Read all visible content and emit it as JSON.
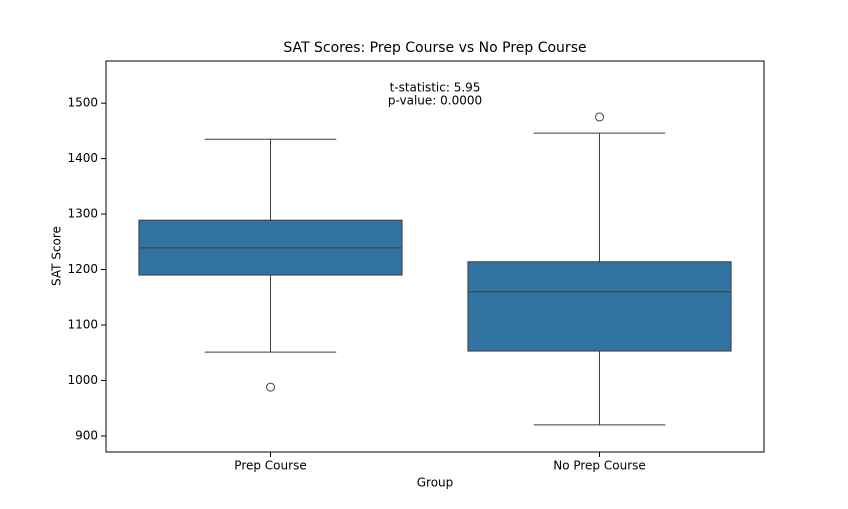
{
  "chart_data": {
    "type": "box",
    "title": "SAT Scores: Prep Course vs No Prep Course",
    "x_label": "Group",
    "y_label": "SAT Score",
    "annotations": [
      "t-statistic: 5.95",
      "p-value: 0.0000"
    ],
    "categories": [
      "Prep Course",
      "No Prep Course"
    ],
    "color": "#3274a1",
    "boxes": [
      {
        "whislo": 1051,
        "q1": 1190,
        "med": 1239,
        "q3": 1289,
        "whishi": 1435,
        "fliers": [
          988
        ]
      },
      {
        "whislo": 920,
        "q1": 1053,
        "med": 1160,
        "q3": 1214,
        "whishi": 1446,
        "fliers": [
          1475
        ]
      }
    ],
    "ylim": [
      871,
      1576
    ],
    "yticks": [
      900,
      1000,
      1100,
      1200,
      1300,
      1400,
      1500
    ],
    "grid": false
  }
}
